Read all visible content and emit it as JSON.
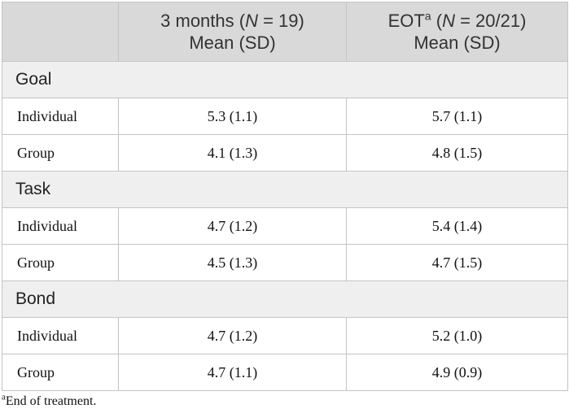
{
  "header": {
    "columns": [
      {
        "pre": "3 months (",
        "italic": "N",
        "post": " = 19)",
        "line2": "Mean (SD)"
      },
      {
        "pre": "EOT",
        "sup": "a",
        "mid": " (",
        "italic": "N",
        "post": " = 20/21)",
        "line2": "Mean (SD)"
      }
    ]
  },
  "sections": [
    {
      "title": "Goal",
      "rows": [
        [
          "Individual",
          "5.3 (1.1)",
          "5.7 (1.1)"
        ],
        [
          "Group",
          "4.1 (1.3)",
          "4.8 (1.5)"
        ]
      ]
    },
    {
      "title": "Task",
      "rows": [
        [
          "Individual",
          "4.7 (1.2)",
          "5.4 (1.4)"
        ],
        [
          "Group",
          "4.5 (1.3)",
          "4.7 (1.5)"
        ]
      ]
    },
    {
      "title": "Bond",
      "rows": [
        [
          "Individual",
          "4.7 (1.2)",
          "5.2 (1.0)"
        ],
        [
          "Group",
          "4.7 (1.1)",
          "4.9 (0.9)"
        ]
      ]
    }
  ],
  "footnote": {
    "mark": "a",
    "text": "End of treatment."
  }
}
